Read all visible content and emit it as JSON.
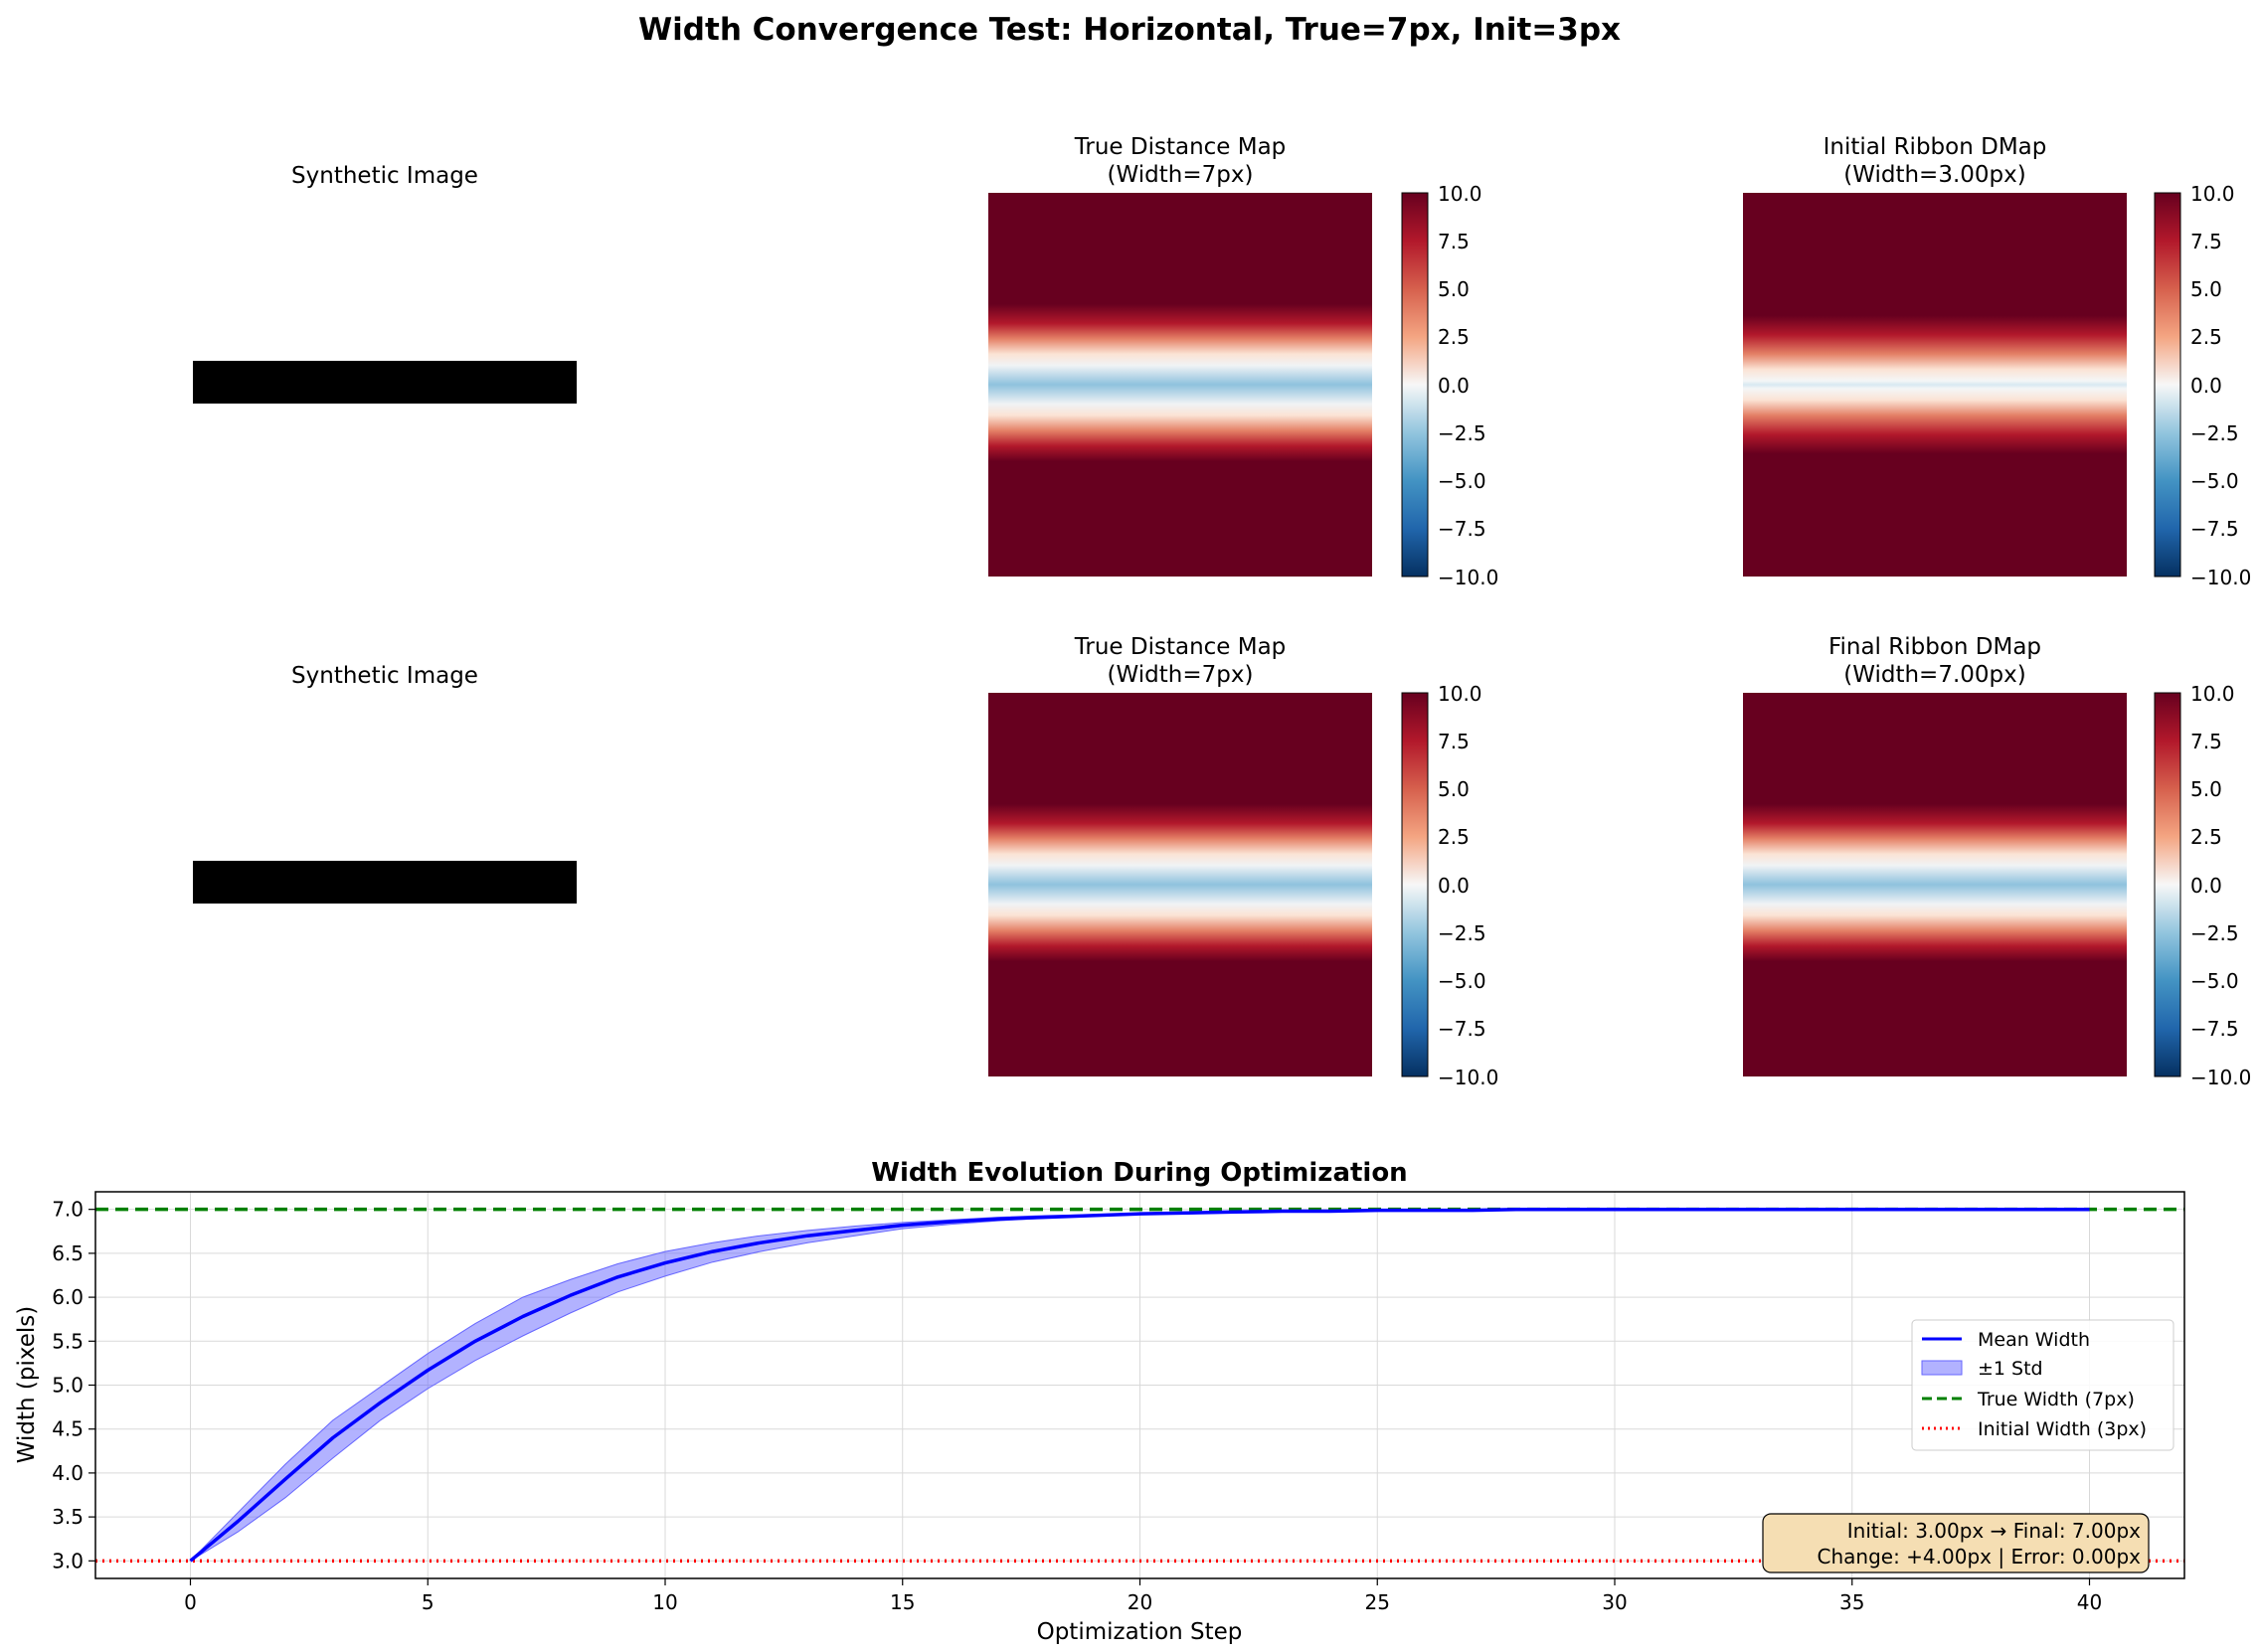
{
  "figure": {
    "suptitle": "Width Convergence Test: Horizontal, True=7px, Init=3px"
  },
  "panels": {
    "synthetic_title": "Synthetic Image",
    "true_map_title_l1": "True Distance Map",
    "true_map_title_l2": "(Width=7px)",
    "initial_title_l1": "Initial Ribbon DMap",
    "initial_title_l2": "(Width=3.00px)",
    "final_title_l1": "Final Ribbon DMap",
    "final_title_l2": "(Width=7.00px)",
    "colorbar_ticks": [
      "10.0",
      "7.5",
      "5.0",
      "2.5",
      "0.0",
      "−2.5",
      "−5.0",
      "−7.5",
      "−10.0"
    ],
    "colormap": "RdBu_r",
    "colormap_range": [
      -10,
      10
    ]
  },
  "colors": {
    "mean": "#0000ff",
    "band": "#6666ff",
    "true_line": "#008000",
    "init_line": "#ff0000",
    "box_fill": "#f5deb3"
  },
  "chart_data": {
    "type": "line",
    "title": "Width Evolution During Optimization",
    "xlabel": "Optimization Step",
    "ylabel": "Width (pixels)",
    "xlim": [
      -2,
      42
    ],
    "ylim": [
      2.8,
      7.2
    ],
    "xticks": [
      "0",
      "5",
      "10",
      "15",
      "20",
      "25",
      "30",
      "35",
      "40"
    ],
    "yticks": [
      "3.0",
      "3.5",
      "4.0",
      "4.5",
      "5.0",
      "5.5",
      "6.0",
      "6.5",
      "7.0"
    ],
    "grid": true,
    "legend_position": "center-right",
    "x": [
      0,
      1,
      2,
      3,
      4,
      5,
      6,
      7,
      8,
      9,
      10,
      11,
      12,
      13,
      14,
      15,
      16,
      17,
      18,
      19,
      20,
      21,
      22,
      23,
      24,
      25,
      26,
      27,
      28,
      29,
      30,
      31,
      32,
      33,
      34,
      35,
      36,
      37,
      38,
      39,
      40
    ],
    "series": [
      {
        "name": "Mean Width",
        "values": [
          3.0,
          3.45,
          3.93,
          4.4,
          4.8,
          5.17,
          5.5,
          5.78,
          6.02,
          6.23,
          6.39,
          6.52,
          6.62,
          6.7,
          6.76,
          6.82,
          6.86,
          6.89,
          6.91,
          6.93,
          6.95,
          6.96,
          6.97,
          6.98,
          6.98,
          6.99,
          6.99,
          6.99,
          7.0,
          7.0,
          7.0,
          7.0,
          7.0,
          7.0,
          7.0,
          7.0,
          7.0,
          7.0,
          7.0,
          7.0,
          7.0
        ]
      },
      {
        "name": "±1 Std",
        "upper": [
          3.0,
          3.55,
          4.1,
          4.6,
          4.98,
          5.36,
          5.7,
          6.0,
          6.2,
          6.38,
          6.52,
          6.62,
          6.7,
          6.76,
          6.81,
          6.85,
          6.88,
          6.91,
          6.93,
          6.94,
          6.96,
          6.97,
          6.97,
          6.98,
          6.99,
          6.99,
          6.99,
          7.0,
          7.0,
          7.0,
          7.0,
          7.0,
          7.0,
          7.0,
          7.0,
          7.0,
          7.0,
          7.0,
          7.0,
          7.0,
          7.0
        ],
        "lower": [
          3.0,
          3.33,
          3.72,
          4.17,
          4.6,
          4.96,
          5.28,
          5.56,
          5.82,
          6.06,
          6.24,
          6.4,
          6.52,
          6.62,
          6.7,
          6.78,
          6.83,
          6.87,
          6.9,
          6.92,
          6.94,
          6.95,
          6.96,
          6.97,
          6.98,
          6.98,
          6.99,
          6.99,
          6.99,
          7.0,
          7.0,
          7.0,
          7.0,
          7.0,
          7.0,
          7.0,
          7.0,
          7.0,
          7.0,
          7.0,
          7.0
        ]
      },
      {
        "name": "True Width (7px)",
        "value": 7.0
      },
      {
        "name": "Initial Width (3px)",
        "value": 3.0
      }
    ],
    "annotation_l1": "Initial: 3.00px → Final: 7.00px",
    "annotation_l2": "Change: +4.00px | Error: 0.00px"
  }
}
